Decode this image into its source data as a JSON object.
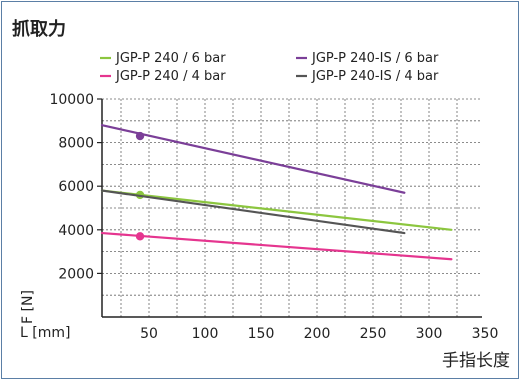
{
  "chart_data": {
    "type": "line",
    "title": "抓取力",
    "xlabel": "手指长度",
    "ylabel": "F [N]",
    "xunit_label": "L [mm]",
    "xlim": [
      0,
      350
    ],
    "ylim": [
      0,
      10000
    ],
    "xticks": [
      50,
      100,
      150,
      200,
      250,
      300,
      350
    ],
    "yticks": [
      2000,
      4000,
      6000,
      8000,
      10000
    ],
    "grid": true,
    "legend_position": "top",
    "series": [
      {
        "name": "JGP-P 240 / 6 bar",
        "color": "#8cc63f",
        "x": [
          0,
          320
        ],
        "y": [
          5800,
          4000
        ],
        "marker": {
          "x": 42,
          "y": 5600
        }
      },
      {
        "name": "JGP-P 240-IS / 6 bar",
        "color": "#7b3f98",
        "x": [
          0,
          278
        ],
        "y": [
          8800,
          5700
        ],
        "marker": {
          "x": 42,
          "y": 8300
        }
      },
      {
        "name": "JGP-P 240 / 4 bar",
        "color": "#e5358f",
        "x": [
          0,
          320
        ],
        "y": [
          3850,
          2650
        ],
        "marker": {
          "x": 42,
          "y": 3700
        }
      },
      {
        "name": "JGP-P 240-IS / 4 bar",
        "color": "#555555",
        "x": [
          0,
          278
        ],
        "y": [
          5800,
          3850
        ],
        "marker": null
      }
    ]
  }
}
